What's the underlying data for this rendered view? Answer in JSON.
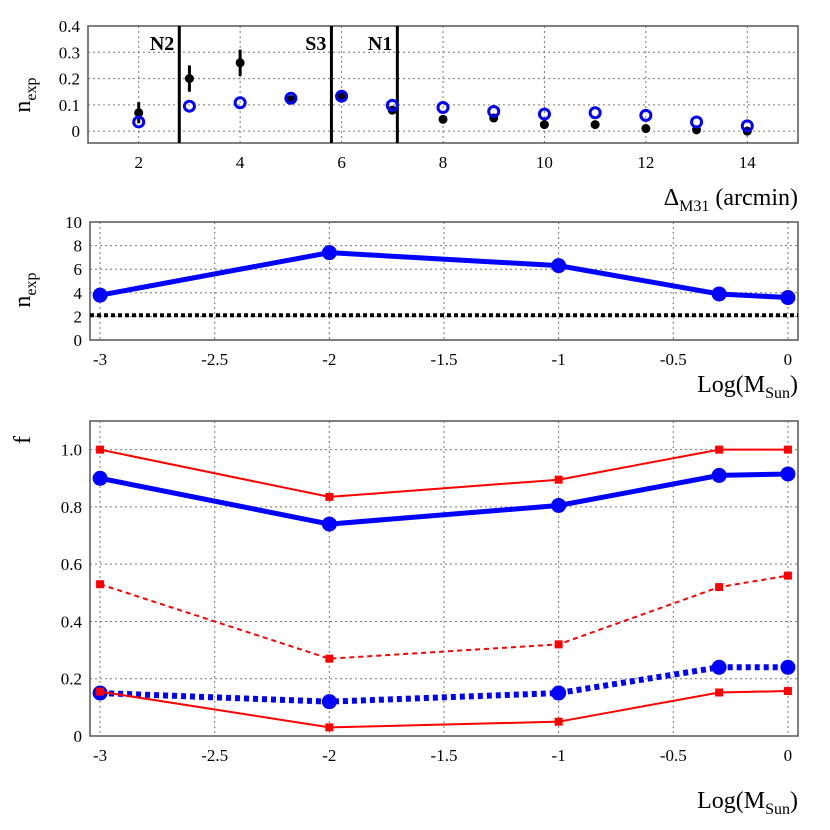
{
  "chart_data": [
    {
      "type": "scatter",
      "xlabel": {
        "main": "Δ",
        "sub": "M31",
        "rest": " (arcmin)"
      },
      "ylabel": {
        "main": "n",
        "sub": "exp"
      },
      "xlim": [
        1,
        15
      ],
      "ylim": [
        -0.045,
        0.4
      ],
      "xticks": [
        2,
        4,
        6,
        8,
        10,
        12,
        14
      ],
      "yticks": [
        0,
        0.1,
        0.2,
        0.3,
        0.4
      ],
      "ytick_labels": [
        "0",
        "0.1",
        "0.2",
        "0.3",
        "0.4"
      ],
      "grid": true,
      "x": [
        2,
        3,
        4,
        5,
        6,
        7,
        8,
        9,
        10,
        11,
        12,
        13,
        14
      ],
      "series": [
        {
          "marker": "filled-circle",
          "color": "#000000",
          "values": [
            0.07,
            0.2,
            0.26,
            0.12,
            0.13,
            0.08,
            0.045,
            0.05,
            0.025,
            0.025,
            0.01,
            0.005,
            0.0
          ],
          "errors": [
            0.04,
            0.05,
            0.05,
            0,
            0,
            0,
            0,
            0,
            0,
            0,
            0,
            0,
            0
          ]
        },
        {
          "marker": "open-circle",
          "color": "#0000ff",
          "values": [
            0.035,
            0.095,
            0.108,
            0.125,
            0.133,
            0.098,
            0.09,
            0.075,
            0.065,
            0.07,
            0.06,
            0.035,
            0.02
          ]
        }
      ],
      "vlines": [
        {
          "x": 2.8,
          "label": "N2"
        },
        {
          "x": 5.8,
          "label": "S3"
        },
        {
          "x": 7.1,
          "label": "N1"
        }
      ]
    },
    {
      "type": "line",
      "xlabel": {
        "main": "Log(M",
        "sub": "Sun",
        "rest": ")"
      },
      "ylabel": {
        "main": "n",
        "sub": "exp"
      },
      "xlim": [
        -3.044,
        0.044
      ],
      "ylim": [
        0,
        10
      ],
      "xticks": [
        -3,
        -2.5,
        -2,
        -1.5,
        -1,
        -0.5,
        0
      ],
      "xtick_labels": [
        "-3",
        "-2.5",
        "-2",
        "-1.5",
        "-1",
        "-0.5",
        "0"
      ],
      "yticks": [
        0,
        2,
        4,
        6,
        8,
        10
      ],
      "ytick_labels": [
        "0",
        "2",
        "4",
        "6",
        "8",
        "10"
      ],
      "grid": true,
      "x": [
        -3,
        -2,
        -1,
        -0.3,
        0
      ],
      "series": [
        {
          "color": "#0000ff",
          "style": "solid-thick",
          "marker": "circle",
          "values": [
            3.8,
            7.4,
            6.3,
            3.9,
            3.6
          ]
        }
      ],
      "hline": {
        "y": 2.1,
        "color": "#000000",
        "style": "dotted"
      }
    },
    {
      "type": "line",
      "xlabel": {
        "main": "Log(M",
        "sub": "Sun",
        "rest": ")"
      },
      "ylabel": {
        "main": "f",
        "sub": "",
        "rest": ""
      },
      "xlim": [
        -3.044,
        0.044
      ],
      "ylim": [
        0,
        1.1
      ],
      "xticks": [
        -3,
        -2.5,
        -2,
        -1.5,
        -1,
        -0.5,
        0
      ],
      "xtick_labels": [
        "-3",
        "-2.5",
        "-2",
        "-1.5",
        "-1",
        "-0.5",
        "0"
      ],
      "yticks": [
        0,
        0.2,
        0.4,
        0.6,
        0.8,
        1.0
      ],
      "ytick_labels": [
        "0",
        "0.2",
        "0.4",
        "0.6",
        "0.8",
        "1.0"
      ],
      "grid": true,
      "x": [
        -3,
        -2,
        -1,
        -0.3,
        0
      ],
      "series": [
        {
          "color": "#ff0000",
          "style": "solid",
          "marker": "square",
          "values": [
            1.0,
            0.835,
            0.895,
            1.0,
            1.0
          ]
        },
        {
          "color": "#0000ff",
          "style": "solid-thick",
          "marker": "circle",
          "values": [
            0.9,
            0.74,
            0.805,
            0.91,
            0.915
          ]
        },
        {
          "color": "#ff0000",
          "style": "dashed",
          "marker": "square",
          "values": [
            0.53,
            0.27,
            0.32,
            0.52,
            0.56
          ]
        },
        {
          "color": "#0000ff",
          "style": "dotted-thick",
          "marker": "circle",
          "values": [
            0.15,
            0.12,
            0.15,
            0.24,
            0.24
          ]
        },
        {
          "color": "#ff0000",
          "style": "solid",
          "marker": "square",
          "values": [
            0.155,
            0.03,
            0.05,
            0.152,
            0.157
          ]
        }
      ]
    }
  ]
}
